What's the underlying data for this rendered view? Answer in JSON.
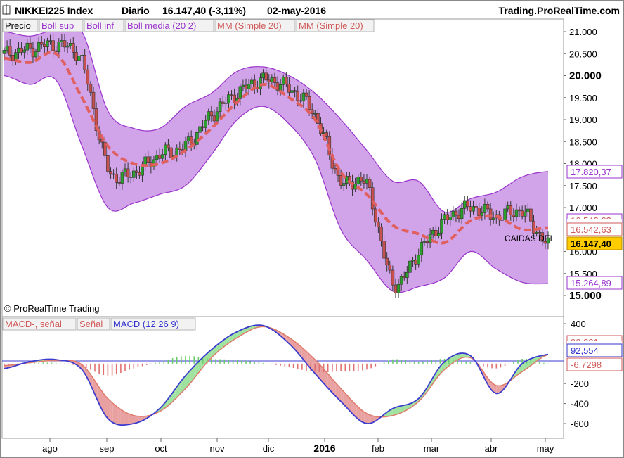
{
  "header": {
    "instrument": "NIKKEI225 Index",
    "period": "Diario",
    "price_change": "16.147,40 (-3,11%)",
    "date": "02-may-2016",
    "source": "Trading.ProRealTime.com"
  },
  "price_panel": {
    "legend": [
      "Precio",
      "Boll sup",
      "Boll inf",
      "Boll media (20 2)",
      "MM (Simple 20)",
      "MM (Simple 20)"
    ],
    "copyright": "© ProRealTime Trading",
    "annotation": "CAIDAS DEL",
    "y_ticks": [
      "21.000",
      "20.500",
      "20.000",
      "19.500",
      "19.000",
      "18.500",
      "18.000",
      "17.500",
      "17.000",
      "16.000",
      "15.500",
      "15.000"
    ],
    "badges": {
      "boll_sup": "17.820,37",
      "boll_media": "16.542,63",
      "mm": "16.542,63",
      "price": "16.147,40",
      "boll_inf": "15.264,89"
    }
  },
  "macd_panel": {
    "legend": [
      "MACD-, señal",
      "Señal",
      "MACD (12 26 9)"
    ],
    "y_ticks": [
      "400",
      "-200",
      "-400",
      "-600"
    ],
    "badges": {
      "signal_hidden": "90,381",
      "macd": "92,554",
      "hist": "-6,7298"
    }
  },
  "x_axis": {
    "labels": [
      "ago",
      "sep",
      "oct",
      "nov",
      "dic",
      "2016",
      "feb",
      "mar",
      "abr",
      "may"
    ]
  },
  "colors": {
    "candle_up": "#2ca02c",
    "candle_down": "#c8504f",
    "band_fill": "#cc99e6",
    "band_edge": "#9933cc",
    "mm_line": "#e06060",
    "macd_line": "#3b3bcf",
    "signal_line": "#e07a6a",
    "hist_up": "#66cc66",
    "hist_down": "#e07070",
    "price_badge_bg": "#ffcc00",
    "macd_badge": "#3333cc",
    "boll_badge": "#9933cc",
    "mm_badge": "#d05a5a"
  },
  "chart_data": {
    "type": "line",
    "title": "NIKKEI225 Index",
    "xlabel": "",
    "ylabel": "",
    "ylim": [
      15000,
      21000
    ],
    "grid": false,
    "legend_placement": "top-left",
    "x": [
      "2015-07-15",
      "2015-07-29",
      "2015-08-12",
      "2015-08-26",
      "2015-09-09",
      "2015-09-23",
      "2015-10-07",
      "2015-10-21",
      "2015-11-04",
      "2015-11-18",
      "2015-12-02",
      "2015-12-16",
      "2015-12-30",
      "2016-01-13",
      "2016-01-27",
      "2016-02-10",
      "2016-02-24",
      "2016-03-09",
      "2016-03-23",
      "2016-04-06",
      "2016-04-20",
      "2016-05-02"
    ],
    "series": [
      {
        "name": "Precio",
        "values": [
          20500,
          20600,
          20700,
          20300,
          17900,
          17800,
          18200,
          18400,
          19100,
          19600,
          19900,
          19700,
          19100,
          17600,
          17500,
          15300,
          16000,
          16700,
          17000,
          16800,
          16900,
          16147
        ]
      },
      {
        "name": "Boll sup",
        "values": [
          21000,
          20900,
          21050,
          21000,
          19200,
          18800,
          18800,
          19300,
          19600,
          20100,
          20200,
          20000,
          19600,
          19000,
          18300,
          17600,
          17600,
          16900,
          17200,
          17350,
          17700,
          17820
        ]
      },
      {
        "name": "Boll inf",
        "values": [
          20000,
          19800,
          19900,
          18400,
          17000,
          17100,
          17300,
          17500,
          18200,
          19000,
          19300,
          18900,
          18100,
          16500,
          15800,
          15100,
          15200,
          15400,
          16000,
          15600,
          15300,
          15265
        ]
      },
      {
        "name": "MM (Simple 20)",
        "values": [
          20400,
          20300,
          20500,
          19500,
          18400,
          18000,
          18000,
          18300,
          18800,
          19400,
          19800,
          19500,
          19000,
          17800,
          17300,
          16600,
          16400,
          16200,
          16700,
          16800,
          16500,
          16543
        ]
      },
      {
        "name": "MACD (12 26 9)",
        "values": [
          -50,
          20,
          40,
          -60,
          -550,
          -600,
          -450,
          -120,
          140,
          320,
          380,
          200,
          -100,
          -380,
          -600,
          -450,
          -350,
          20,
          80,
          -300,
          0,
          92.554
        ]
      },
      {
        "name": "Señal",
        "values": [
          -20,
          10,
          30,
          -10,
          -350,
          -520,
          -480,
          -250,
          60,
          260,
          370,
          260,
          40,
          -250,
          -500,
          -520,
          -380,
          -60,
          60,
          -220,
          -80,
          90.381
        ]
      }
    ]
  }
}
